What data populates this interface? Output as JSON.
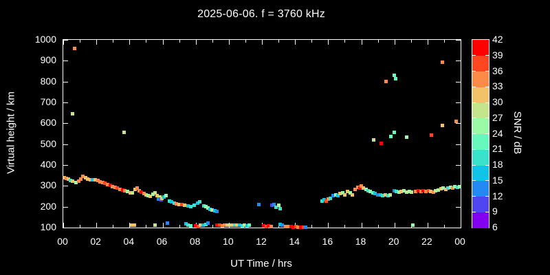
{
  "title": "2025-06-06. f = 3760 kHz",
  "chart_data": {
    "type": "scatter",
    "title": "2025-06-06. f = 3760 kHz",
    "xlabel": "UT Time / hrs",
    "ylabel": "Virtual height / km",
    "xlim": [
      0,
      24
    ],
    "ylim": [
      100,
      1000
    ],
    "grid": false,
    "background": "#000000",
    "axis_color": "#ffffff",
    "x_tick_hours": [
      0,
      1,
      2,
      3,
      4,
      5,
      6,
      7,
      8,
      9,
      10,
      11,
      12,
      13,
      14,
      15,
      16,
      17,
      18,
      19,
      20,
      21,
      22,
      23,
      24
    ],
    "x_tick_labels": [
      "00",
      "02",
      "04",
      "06",
      "08",
      "10",
      "12",
      "14",
      "16",
      "18",
      "20",
      "22",
      "00"
    ],
    "y_ticks": [
      100,
      200,
      300,
      400,
      500,
      600,
      700,
      800,
      900,
      1000
    ],
    "colorbar": {
      "label": "SNR / dB",
      "tick_labels": [
        "6",
        "9",
        "12",
        "15",
        "18",
        "21",
        "24",
        "27",
        "30",
        "33",
        "36",
        "39",
        "42"
      ],
      "bin_edges": [
        6,
        9,
        12,
        15,
        18,
        21,
        24,
        27,
        30,
        33,
        36,
        39,
        42
      ],
      "colors_low_to_high": [
        "#8400f0",
        "#4f46f2",
        "#2489f2",
        "#0fc4e6",
        "#3ae2cc",
        "#66f8bc",
        "#9afaa5",
        "#c5e58d",
        "#f2c269",
        "#fc8b47",
        "#fc4721",
        "#fe0000"
      ]
    },
    "point_fields": [
      "time_hr",
      "height_km",
      "snr_db"
    ],
    "points": [
      [
        0.08,
        340,
        31.5
      ],
      [
        0.2,
        336,
        34.5
      ],
      [
        0.33,
        331,
        31.5
      ],
      [
        0.45,
        327,
        19.5
      ],
      [
        0.58,
        322,
        31.5
      ],
      [
        0.75,
        316,
        25.5
      ],
      [
        0.92,
        324,
        34.5
      ],
      [
        1.05,
        333,
        34.5
      ],
      [
        1.2,
        344,
        34.5
      ],
      [
        1.33,
        338,
        31.5
      ],
      [
        1.48,
        332,
        31.5
      ],
      [
        1.63,
        330,
        31.5
      ],
      [
        1.78,
        330,
        16.5
      ],
      [
        1.93,
        328,
        31.5
      ],
      [
        2.08,
        325,
        34.5
      ],
      [
        2.23,
        320,
        34.5
      ],
      [
        2.38,
        315,
        34.5
      ],
      [
        2.53,
        311,
        37.5
      ],
      [
        2.68,
        307,
        34.5
      ],
      [
        2.83,
        302,
        40.5
      ],
      [
        2.98,
        297,
        34.5
      ],
      [
        3.13,
        292,
        34.5
      ],
      [
        3.28,
        288,
        37.5
      ],
      [
        3.43,
        284,
        34.5
      ],
      [
        3.58,
        280,
        40.5
      ],
      [
        3.73,
        276,
        34.5
      ],
      [
        3.88,
        272,
        25.5
      ],
      [
        4.03,
        268,
        31.5
      ],
      [
        4.18,
        265,
        28.5
      ],
      [
        4.33,
        283,
        31.5
      ],
      [
        4.48,
        290,
        34.5
      ],
      [
        4.6,
        278,
        34.5
      ],
      [
        4.72,
        270,
        40.5
      ],
      [
        4.87,
        263,
        34.5
      ],
      [
        5.0,
        256,
        31.5
      ],
      [
        5.12,
        252,
        25.5
      ],
      [
        5.27,
        250,
        31.5
      ],
      [
        5.42,
        260,
        25.5
      ],
      [
        5.55,
        266,
        28.5
      ],
      [
        5.68,
        253,
        31.5
      ],
      [
        5.82,
        246,
        28.5
      ],
      [
        5.75,
        238,
        13.5
      ],
      [
        5.9,
        233,
        10.5
      ],
      [
        5.97,
        241,
        31.5
      ],
      [
        6.1,
        248,
        16.5
      ],
      [
        6.22,
        254,
        25.5
      ],
      [
        6.4,
        228,
        19.5
      ],
      [
        6.55,
        222,
        16.5
      ],
      [
        6.7,
        218,
        19.5
      ],
      [
        6.85,
        215,
        34.5
      ],
      [
        7.0,
        212,
        31.5
      ],
      [
        7.18,
        212,
        37.5
      ],
      [
        7.33,
        208,
        31.5
      ],
      [
        7.55,
        204,
        16.5
      ],
      [
        7.72,
        202,
        19.5
      ],
      [
        7.9,
        207,
        19.5
      ],
      [
        8.1,
        216,
        16.5
      ],
      [
        8.25,
        223,
        19.5
      ],
      [
        8.5,
        204,
        19.5
      ],
      [
        8.62,
        199,
        25.5
      ],
      [
        8.75,
        194,
        25.5
      ],
      [
        8.88,
        188,
        16.5
      ],
      [
        9.0,
        184,
        28.5
      ],
      [
        9.15,
        180,
        16.5
      ],
      [
        9.3,
        178,
        13.5
      ],
      [
        11.8,
        209,
        13.5
      ],
      [
        12.6,
        206,
        10.5
      ],
      [
        12.72,
        212,
        13.5
      ],
      [
        12.85,
        196,
        19.5
      ],
      [
        13.0,
        208,
        25.5
      ],
      [
        13.12,
        192,
        19.5
      ],
      [
        15.62,
        228,
        19.5
      ],
      [
        15.75,
        232,
        16.5
      ],
      [
        15.88,
        226,
        37.5
      ],
      [
        16.0,
        236,
        34.5
      ],
      [
        16.12,
        241,
        19.5
      ],
      [
        16.3,
        252,
        13.5
      ],
      [
        16.45,
        258,
        25.5
      ],
      [
        16.58,
        252,
        16.5
      ],
      [
        16.72,
        262,
        31.5
      ],
      [
        16.88,
        268,
        25.5
      ],
      [
        17.02,
        258,
        31.5
      ],
      [
        17.18,
        272,
        31.5
      ],
      [
        17.32,
        265,
        25.5
      ],
      [
        17.48,
        256,
        31.5
      ],
      [
        17.62,
        282,
        34.5
      ],
      [
        17.78,
        294,
        34.5
      ],
      [
        17.9,
        290,
        40.5
      ],
      [
        18.02,
        300,
        34.5
      ],
      [
        18.12,
        288,
        31.5
      ],
      [
        18.27,
        282,
        25.5
      ],
      [
        18.42,
        278,
        19.5
      ],
      [
        18.55,
        272,
        25.5
      ],
      [
        18.7,
        268,
        22.5
      ],
      [
        18.85,
        262,
        16.5
      ],
      [
        19.0,
        258,
        13.5
      ],
      [
        19.15,
        255,
        16.5
      ],
      [
        19.3,
        252,
        19.5
      ],
      [
        19.45,
        256,
        31.5
      ],
      [
        19.6,
        252,
        19.5
      ],
      [
        19.75,
        256,
        28.5
      ],
      [
        20.0,
        278,
        13.5
      ],
      [
        20.12,
        272,
        19.5
      ],
      [
        20.27,
        270,
        25.5
      ],
      [
        20.42,
        272,
        31.5
      ],
      [
        20.57,
        275,
        25.5
      ],
      [
        20.72,
        270,
        28.5
      ],
      [
        20.9,
        272,
        25.5
      ],
      [
        21.05,
        270,
        28.5
      ],
      [
        21.3,
        272,
        34.5
      ],
      [
        21.45,
        275,
        40.5
      ],
      [
        21.6,
        272,
        34.5
      ],
      [
        21.75,
        275,
        40.5
      ],
      [
        21.9,
        272,
        34.5
      ],
      [
        22.05,
        275,
        37.5
      ],
      [
        22.2,
        272,
        31.5
      ],
      [
        22.35,
        270,
        34.5
      ],
      [
        22.5,
        275,
        28.5
      ],
      [
        22.65,
        280,
        25.5
      ],
      [
        22.8,
        285,
        31.5
      ],
      [
        22.95,
        288,
        25.5
      ],
      [
        23.1,
        282,
        31.5
      ],
      [
        23.25,
        288,
        19.5
      ],
      [
        23.4,
        294,
        25.5
      ],
      [
        23.52,
        290,
        34.5
      ],
      [
        23.65,
        297,
        25.5
      ],
      [
        23.8,
        292,
        19.5
      ],
      [
        23.95,
        296,
        25.5
      ],
      [
        4.15,
        113,
        31.5
      ],
      [
        4.3,
        110,
        31.5
      ],
      [
        5.55,
        112,
        28.5
      ],
      [
        6.3,
        120,
        13.5
      ],
      [
        7.4,
        118,
        16.5
      ],
      [
        7.55,
        112,
        19.5
      ],
      [
        7.7,
        108,
        22.5
      ],
      [
        8.0,
        108,
        40.5
      ],
      [
        8.15,
        105,
        37.5
      ],
      [
        8.3,
        110,
        31.5
      ],
      [
        8.45,
        112,
        16.5
      ],
      [
        8.6,
        115,
        19.5
      ],
      [
        8.75,
        120,
        13.5
      ],
      [
        9.3,
        112,
        40.5
      ],
      [
        9.45,
        110,
        37.5
      ],
      [
        9.6,
        108,
        34.5
      ],
      [
        9.75,
        110,
        34.5
      ],
      [
        9.9,
        112,
        31.5
      ],
      [
        10.05,
        113,
        28.5
      ],
      [
        10.2,
        112,
        31.5
      ],
      [
        10.35,
        110,
        19.5
      ],
      [
        10.5,
        112,
        31.5
      ],
      [
        10.65,
        110,
        16.5
      ],
      [
        10.8,
        108,
        19.5
      ],
      [
        10.95,
        112,
        28.5
      ],
      [
        11.1,
        108,
        16.5
      ],
      [
        11.25,
        110,
        22.5
      ],
      [
        12.1,
        108,
        40.5
      ],
      [
        12.25,
        105,
        37.5
      ],
      [
        12.4,
        108,
        40.5
      ],
      [
        12.55,
        106,
        34.5
      ],
      [
        13.1,
        115,
        16.5
      ],
      [
        13.22,
        110,
        13.5
      ],
      [
        13.45,
        106,
        34.5
      ],
      [
        13.6,
        105,
        34.5
      ],
      [
        13.75,
        104,
        40.5
      ],
      [
        13.9,
        103,
        40.5
      ],
      [
        14.05,
        104,
        37.5
      ],
      [
        14.2,
        103,
        34.5
      ],
      [
        14.35,
        102,
        40.5
      ],
      [
        14.5,
        103,
        37.5
      ],
      [
        14.65,
        103,
        13.5
      ],
      [
        21.1,
        110,
        25.5
      ],
      [
        0.58,
        645,
        28.5
      ],
      [
        0.67,
        960,
        34.5
      ],
      [
        3.67,
        558,
        28.5
      ],
      [
        18.75,
        519,
        28.5
      ],
      [
        19.2,
        505,
        40.5
      ],
      [
        19.8,
        538,
        22.5
      ],
      [
        20.0,
        556,
        22.5
      ],
      [
        20.75,
        535,
        25.5
      ],
      [
        22.25,
        545,
        37.5
      ],
      [
        22.9,
        590,
        31.5
      ],
      [
        23.75,
        608,
        34.5
      ],
      [
        19.5,
        800,
        34.5
      ],
      [
        20.0,
        830,
        22.5
      ],
      [
        20.08,
        815,
        22.5
      ],
      [
        22.9,
        893,
        34.5
      ]
    ]
  }
}
